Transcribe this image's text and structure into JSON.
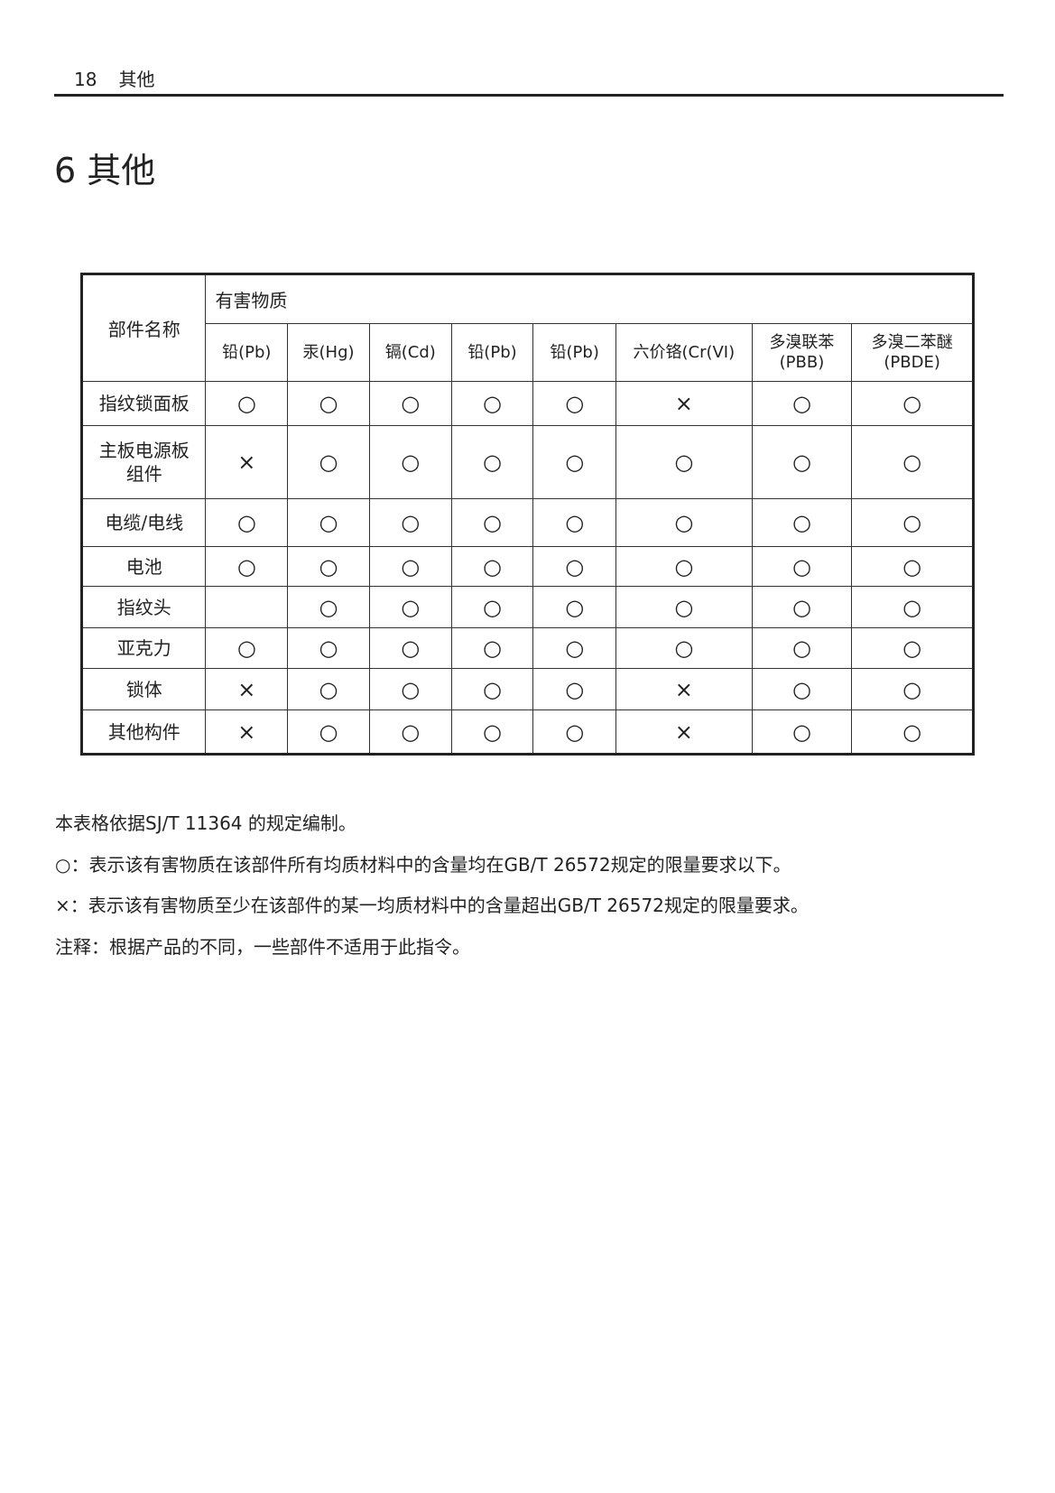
{
  "running_header": {
    "page_number": "18",
    "section": "其他"
  },
  "title": "6 其他",
  "table": {
    "part_header": "部件名称",
    "substance_header": "有害物质",
    "columns": [
      "铅(Pb)",
      "汞(Hg)",
      "镉(Cd)",
      "铅(Pb)",
      "铅(Pb)",
      "六价铬(Cr(VI)",
      "多溴联苯\n(PBB)",
      "多溴二苯醚\n(PBDE)"
    ],
    "rows": [
      {
        "part": "指纹锁面板",
        "values": [
          "○",
          "○",
          "○",
          "○",
          "○",
          "×",
          "○",
          "○"
        ]
      },
      {
        "part": "主板电源板\n组件",
        "values": [
          "×",
          "○",
          "○",
          "○",
          "○",
          "○",
          "○",
          "○"
        ]
      },
      {
        "part": "电缆/电线",
        "values": [
          "○",
          "○",
          "○",
          "○",
          "○",
          "○",
          "○",
          "○"
        ]
      },
      {
        "part": "电池",
        "values": [
          "○",
          "○",
          "○",
          "○",
          "○",
          "○",
          "○",
          "○"
        ]
      },
      {
        "part": "指纹头",
        "values": [
          "",
          "○",
          "○",
          "○",
          "○",
          "○",
          "○",
          "○"
        ]
      },
      {
        "part": "亚克力",
        "values": [
          "○",
          "○",
          "○",
          "○",
          "○",
          "○",
          "○",
          "○"
        ]
      },
      {
        "part": "锁体",
        "values": [
          "×",
          "○",
          "○",
          "○",
          "○",
          "×",
          "○",
          "○"
        ]
      },
      {
        "part": "其他构件",
        "values": [
          "×",
          "○",
          "○",
          "○",
          "○",
          "×",
          "○",
          "○"
        ]
      }
    ]
  },
  "notes": [
    "本表格依据SJ/T 11364 的规定编制。",
    "○：表示该有害物质在该部件所有均质材料中的含量均在GB/T 26572规定的限量要求以下。",
    "×：表示该有害物质至少在该部件的某一均质材料中的含量超出GB/T 26572规定的限量要求。",
    "注释：根据产品的不同，一些部件不适用于此指令。"
  ]
}
